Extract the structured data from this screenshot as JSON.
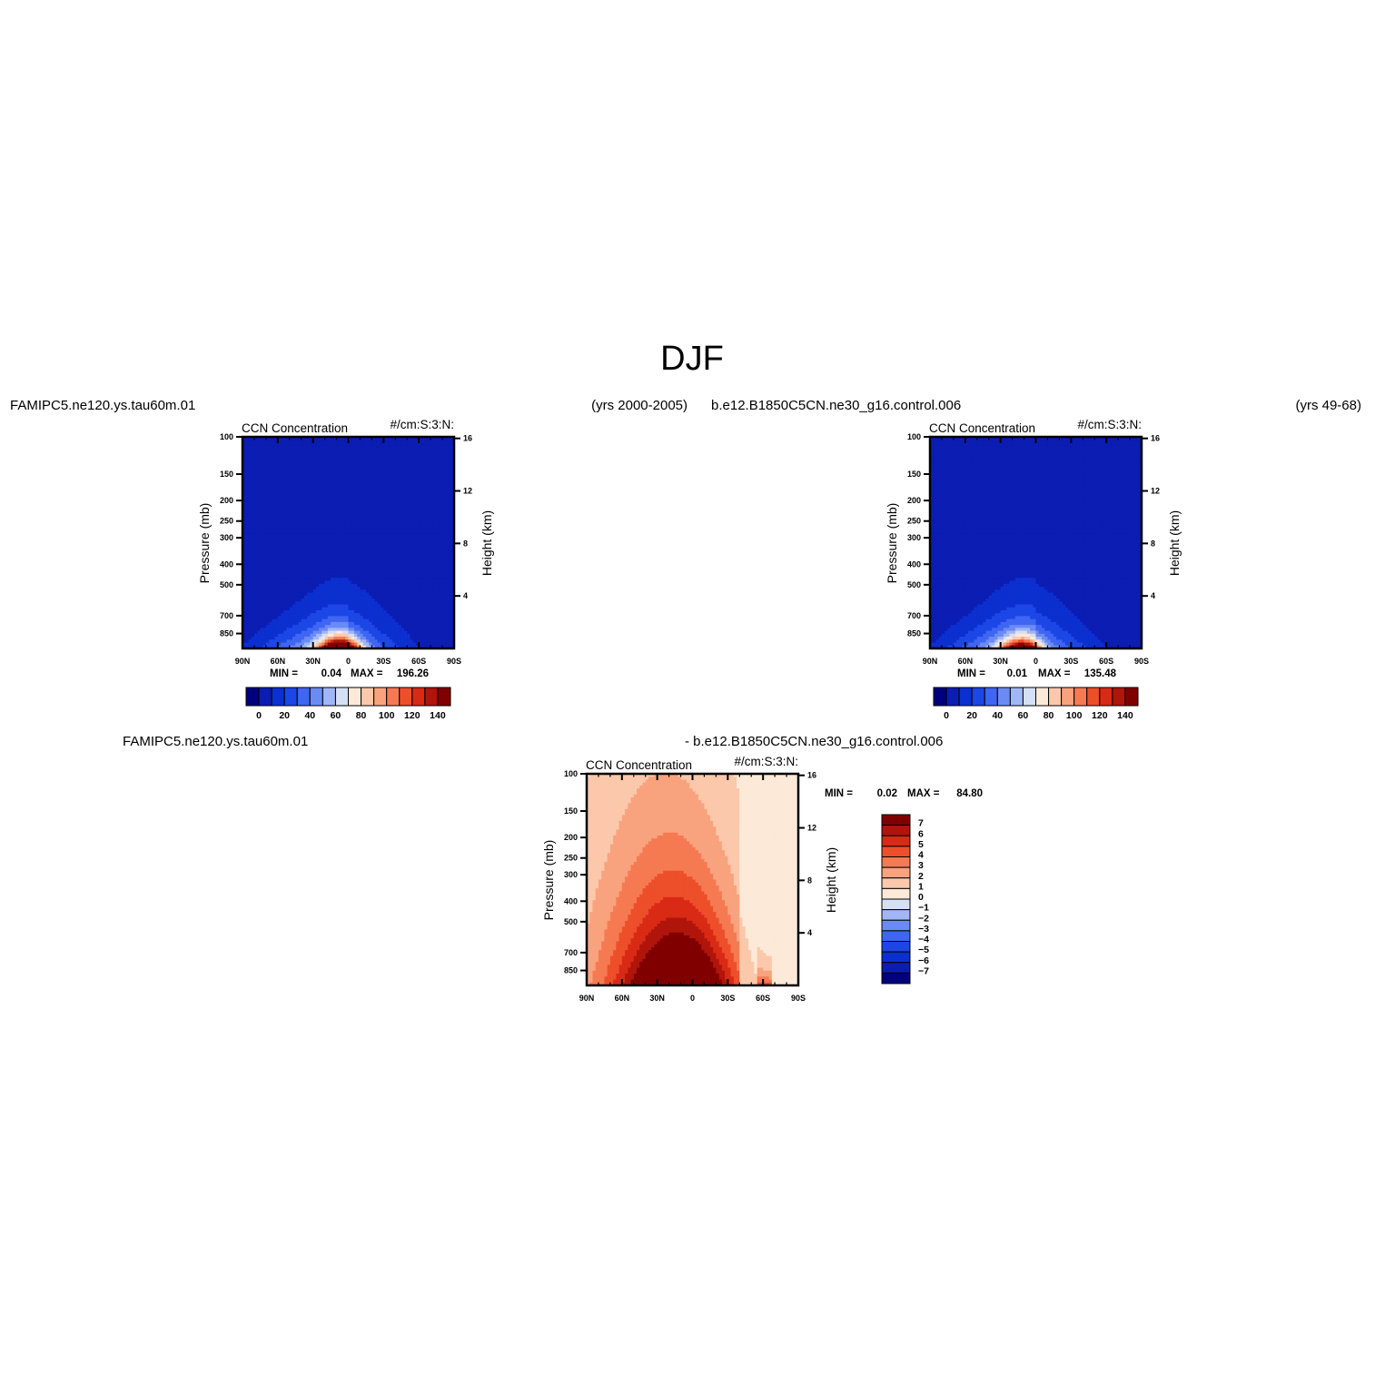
{
  "page": {
    "title": "DJF"
  },
  "chart_data": [
    {
      "type": "heatmap",
      "panel": "top-left",
      "case_name": "FAMIPC5.ne120.ys.tau60m.01",
      "years": "(yrs 2000-2005)",
      "variable": "CCN Concentration",
      "units": "#/cm:S:3:N:",
      "xlabel": "",
      "ylabel": "Pressure (mb)",
      "y2label": "Height (km)",
      "x_ticks": [
        "90N",
        "60N",
        "30N",
        "0",
        "30S",
        "60S",
        "90S"
      ],
      "x_tick_values": [
        90,
        60,
        30,
        0,
        -30,
        -60,
        -90
      ],
      "y_ticks": [
        "100",
        "150",
        "200",
        "250",
        "300",
        "400",
        "500",
        "700",
        "850"
      ],
      "y_tick_values": [
        100,
        150,
        200,
        250,
        300,
        400,
        500,
        700,
        850
      ],
      "y2_ticks": [
        "16",
        "12",
        "8",
        "4"
      ],
      "xlim": [
        90,
        -90
      ],
      "ylim": [
        1000,
        100
      ],
      "y_scale": "log",
      "min_label": "MIN =",
      "min": "0.04",
      "max_label": "MAX =",
      "max": "196.26",
      "colorbar": {
        "orientation": "horizontal",
        "levels": [
          0,
          10,
          20,
          30,
          40,
          50,
          60,
          70,
          80,
          90,
          100,
          110,
          120,
          130,
          140
        ],
        "labels": [
          "0",
          "20",
          "40",
          "60",
          "80",
          "100",
          "120",
          "140"
        ]
      },
      "field": {
        "description_free": true,
        "center_lat": 7,
        "max_value": 196.26
      }
    },
    {
      "type": "heatmap",
      "panel": "top-right",
      "case_name": "b.e12.B1850C5CN.ne30_g16.control.006",
      "years": "(yrs 49-68)",
      "variable": "CCN Concentration",
      "units": "#/cm:S:3:N:",
      "xlabel": "",
      "ylabel": "Pressure (mb)",
      "y2label": "Height (km)",
      "x_ticks": [
        "90N",
        "60N",
        "30N",
        "0",
        "30S",
        "60S",
        "90S"
      ],
      "x_tick_values": [
        90,
        60,
        30,
        0,
        -30,
        -60,
        -90
      ],
      "y_ticks": [
        "100",
        "150",
        "200",
        "250",
        "300",
        "400",
        "500",
        "700",
        "850"
      ],
      "y_tick_values": [
        100,
        150,
        200,
        250,
        300,
        400,
        500,
        700,
        850
      ],
      "y2_ticks": [
        "16",
        "12",
        "8",
        "4"
      ],
      "xlim": [
        90,
        -90
      ],
      "ylim": [
        1000,
        100
      ],
      "y_scale": "log",
      "min_label": "MIN =",
      "min": "0.01",
      "max_label": "MAX =",
      "max": "135.48",
      "colorbar": {
        "orientation": "horizontal",
        "levels": [
          0,
          10,
          20,
          30,
          40,
          50,
          60,
          70,
          80,
          90,
          100,
          110,
          120,
          130,
          140
        ],
        "labels": [
          "0",
          "20",
          "40",
          "60",
          "80",
          "100",
          "120",
          "140"
        ]
      },
      "field": {
        "center_lat": 12,
        "max_value": 135.48
      }
    },
    {
      "type": "heatmap",
      "panel": "bottom-difference",
      "case_name": "FAMIPC5.ne120.ys.tau60m.01",
      "case_name_2": "- b.e12.B1850C5CN.ne30_g16.control.006",
      "variable": "CCN Concentration",
      "units": "#/cm:S:3:N:",
      "xlabel": "",
      "ylabel": "Pressure (mb)",
      "y2label": "Height (km)",
      "x_ticks": [
        "90N",
        "60N",
        "30N",
        "0",
        "30S",
        "60S",
        "90S"
      ],
      "x_tick_values": [
        90,
        60,
        30,
        0,
        -30,
        -60,
        -90
      ],
      "y_ticks": [
        "100",
        "150",
        "200",
        "250",
        "300",
        "400",
        "500",
        "700",
        "850"
      ],
      "y_tick_values": [
        100,
        150,
        200,
        250,
        300,
        400,
        500,
        700,
        850
      ],
      "y2_ticks": [
        "16",
        "12",
        "8",
        "4"
      ],
      "xlim": [
        90,
        -90
      ],
      "ylim": [
        1000,
        100
      ],
      "y_scale": "log",
      "min_label": "MIN =",
      "min": "0.02",
      "max_label": "MAX =",
      "max": "84.80",
      "colorbar": {
        "orientation": "vertical",
        "levels": [
          7,
          6,
          5,
          4,
          3,
          2,
          1,
          0,
          -1,
          -2,
          -3,
          -4,
          -5,
          -6,
          -7
        ],
        "labels": [
          "7",
          "6",
          "5",
          "4",
          "3",
          "2",
          "1",
          "0",
          "-1",
          "-2",
          "-3",
          "-4",
          "-5",
          "-6",
          "-7"
        ]
      }
    }
  ],
  "colors": {
    "seq": [
      "#00007f",
      "#0b1db2",
      "#0c2fd0",
      "#1d46e6",
      "#3f66f2",
      "#6a8bf4",
      "#a1b6f4",
      "#d5dff6",
      "#fde9d7",
      "#fbc8ab",
      "#f9a27e",
      "#f57a52",
      "#ed4f2a",
      "#d82a14",
      "#b0150b",
      "#800000"
    ],
    "diff": [
      "#800000",
      "#b0150b",
      "#d82a14",
      "#ed4f2a",
      "#f57a52",
      "#f9a27e",
      "#fbc8ab",
      "#fde9d7",
      "#d5dff6",
      "#a1b6f4",
      "#6a8bf4",
      "#3f66f2",
      "#1d46e6",
      "#0c2fd0",
      "#0b1db2",
      "#00007f"
    ]
  }
}
